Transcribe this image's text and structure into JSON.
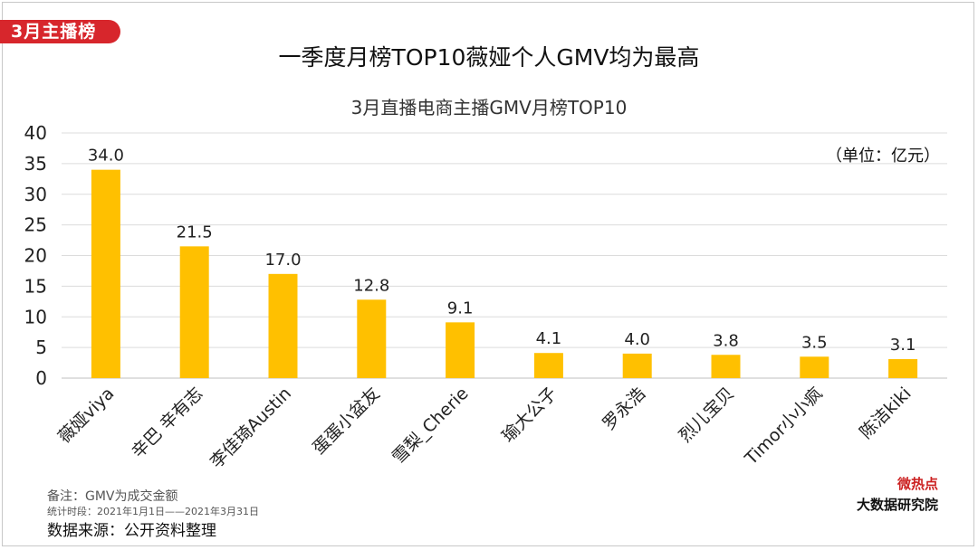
{
  "tag_label": "3月主播榜",
  "headline": "一季度月榜TOP10薇娅个人GMV均为最高",
  "unit_label": "（单位：亿元）",
  "notes": {
    "remark": "备注：GMV为成交金额",
    "period": "统计时段：2021年1月1日——2021年3月31日",
    "source": "数据来源：公开资料整理"
  },
  "logo": {
    "line1": "微热点",
    "line2": "大数据研究院"
  },
  "colors": {
    "bar": "#FFC000",
    "tag": "#d7262c",
    "grid": "#dcdcdc"
  },
  "chart_data": {
    "type": "bar",
    "title": "3月直播电商主播GMV月榜TOP10",
    "categories": [
      "薇娅viya",
      "辛巴 辛有志",
      "李佳琦Austin",
      "蛋蛋小盆友",
      "雪梨_Cherie",
      "瑜大公子",
      "罗永浩",
      "烈儿宝贝",
      "Timor小小疯",
      "陈洁kiki"
    ],
    "values": [
      34.0,
      21.5,
      17.0,
      12.8,
      9.1,
      4.1,
      4.0,
      3.8,
      3.5,
      3.1
    ],
    "value_labels": [
      "34.0",
      "21.5",
      "17.0",
      "12.8",
      "9.1",
      "4.1",
      "4.0",
      "3.8",
      "3.5",
      "3.1"
    ],
    "yticks": [
      "0",
      "5",
      "10",
      "15",
      "20",
      "25",
      "30",
      "35",
      "40"
    ],
    "ylim": [
      0,
      40
    ],
    "grid": true,
    "legend": "none"
  }
}
